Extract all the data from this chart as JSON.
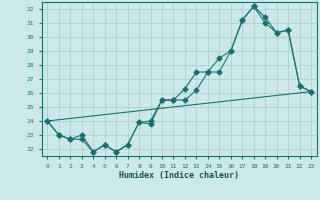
{
  "xlabel": "Humidex (Indice chaleur)",
  "ylabel": "",
  "background_color": "#cce8e8",
  "line_color": "#1a7070",
  "grid_color": "#aacccc",
  "xlim": [
    -0.5,
    23.5
  ],
  "ylim": [
    21.5,
    32.5
  ],
  "yticks": [
    22,
    23,
    24,
    25,
    26,
    27,
    28,
    29,
    30,
    31,
    32
  ],
  "xticks": [
    0,
    1,
    2,
    3,
    4,
    5,
    6,
    7,
    8,
    9,
    10,
    11,
    12,
    13,
    14,
    15,
    16,
    17,
    18,
    19,
    20,
    21,
    22,
    23
  ],
  "line1_x": [
    0,
    1,
    2,
    3,
    4,
    5,
    6,
    7,
    8,
    9,
    10,
    11,
    12,
    13,
    14,
    15,
    16,
    17,
    18,
    19,
    20,
    21,
    22,
    23
  ],
  "line1_y": [
    24.0,
    23.0,
    22.7,
    22.7,
    21.8,
    22.3,
    21.8,
    22.3,
    23.9,
    23.8,
    25.5,
    25.5,
    25.5,
    26.2,
    27.5,
    27.5,
    29.0,
    31.2,
    32.2,
    31.4,
    30.3,
    30.5,
    26.5,
    26.1
  ],
  "line2_x": [
    0,
    1,
    2,
    3,
    4,
    5,
    6,
    7,
    8,
    9,
    10,
    11,
    12,
    13,
    14,
    15,
    16,
    17,
    18,
    19,
    20,
    21,
    22,
    23
  ],
  "line2_y": [
    24.0,
    23.0,
    22.7,
    23.0,
    21.8,
    22.3,
    21.8,
    22.3,
    23.9,
    24.0,
    25.5,
    25.5,
    26.3,
    27.5,
    27.5,
    28.5,
    29.0,
    31.2,
    32.2,
    31.0,
    30.3,
    30.5,
    26.5,
    26.1
  ],
  "line3_x": [
    0,
    23
  ],
  "line3_y": [
    24.0,
    26.1
  ]
}
